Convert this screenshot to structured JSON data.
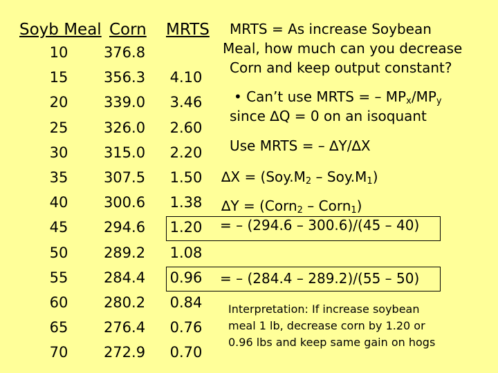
{
  "headers": {
    "soy": "Soyb Meal",
    "corn": "Corn",
    "mrts": "MRTS"
  },
  "rows": [
    {
      "soy": "10",
      "corn": "376.8",
      "mrts": ""
    },
    {
      "soy": "15",
      "corn": "356.3",
      "mrts": "4.10"
    },
    {
      "soy": "20",
      "corn": "339.0",
      "mrts": "3.46"
    },
    {
      "soy": "25",
      "corn": "326.0",
      "mrts": "2.60"
    },
    {
      "soy": "30",
      "corn": "315.0",
      "mrts": "2.20"
    },
    {
      "soy": "35",
      "corn": "307.5",
      "mrts": "1.50"
    },
    {
      "soy": "40",
      "corn": "300.6",
      "mrts": "1.38"
    },
    {
      "soy": "45",
      "corn": "294.6",
      "mrts": "1.20"
    },
    {
      "soy": "50",
      "corn": "289.2",
      "mrts": "1.08"
    },
    {
      "soy": "55",
      "corn": "284.4",
      "mrts": "0.96"
    },
    {
      "soy": "60",
      "corn": "280.2",
      "mrts": "0.84"
    },
    {
      "soy": "65",
      "corn": "276.4",
      "mrts": "0.76"
    },
    {
      "soy": "70",
      "corn": "272.9",
      "mrts": "0.70"
    }
  ],
  "right": {
    "def_line1": "MRTS = As increase Soybean",
    "def_line2": "Meal, how much can you decrease",
    "def_line3": "Corn and keep output constant?",
    "bullet_a": "• Can’t use MRTS = – MP",
    "bullet_sub_x": "x",
    "bullet_slash": "/MP",
    "bullet_sub_y": "y",
    "bullet_line2": "since ∆Q = 0 on an isoquant",
    "use_mrts": "Use MRTS = – ∆Y/∆X",
    "dx_a": "∆X = (Soy.M",
    "dx_sub2": "2",
    "dx_b": " – Soy.M",
    "dx_sub1": "1",
    "dx_c": ")",
    "dy_a": "∆Y = (Corn",
    "dy_sub2": "2",
    "dy_b": " – Corn",
    "dy_sub1": "1",
    "dy_c": ")",
    "calc1": "= – (294.6 – 300.6)/(45 – 40)",
    "calc2": "= – (284.4 – 289.2)/(55 – 50)",
    "interp_line1": "Interpretation: If increase soybean",
    "interp_line2": "meal 1 lb, decrease corn by 1.20 or",
    "interp_line3": "0.96 lbs and keep same gain on hogs"
  }
}
